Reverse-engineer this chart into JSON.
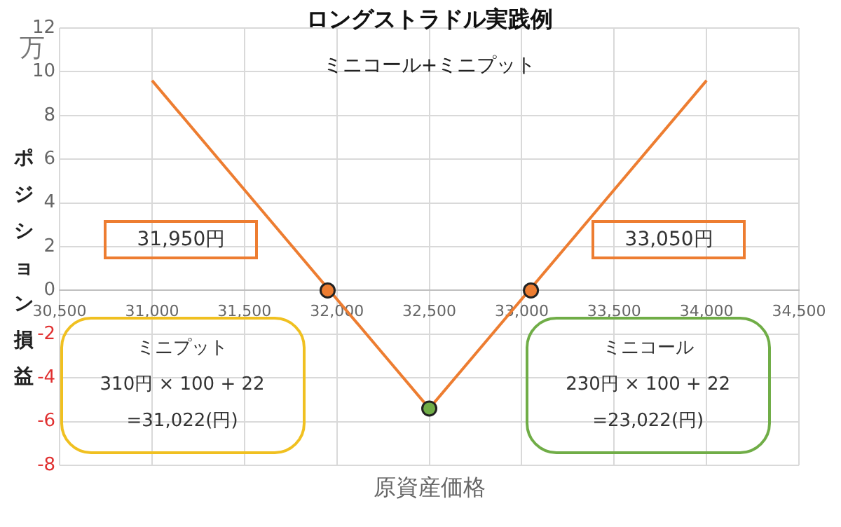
{
  "chart_data": {
    "type": "line",
    "title": "ロングストラドル実践例",
    "subtitle": "ミニコール+ミニプット",
    "xlabel": "原資産価格",
    "ylabel": "ポジション損益",
    "xlim": [
      30500,
      34500
    ],
    "xticks": [
      {
        "value": 30500,
        "label": "30,500"
      },
      {
        "value": 31000,
        "label": "31,000"
      },
      {
        "value": 31500,
        "label": "31,500"
      },
      {
        "value": 32000,
        "label": "32,000"
      },
      {
        "value": 32500,
        "label": "32,500"
      },
      {
        "value": 33000,
        "label": "33,000"
      },
      {
        "value": 33500,
        "label": "33,500"
      },
      {
        "value": 34000,
        "label": "34,000"
      },
      {
        "value": 34500,
        "label": "34,500"
      }
    ],
    "ylim": [
      -8,
      12
    ],
    "yticks": [
      -8,
      -6,
      -4,
      -2,
      0,
      2,
      4,
      6,
      8,
      10,
      12
    ],
    "grid": true,
    "legend": false,
    "series": [
      {
        "type": "line",
        "color": "#ed7d31",
        "x": [
          31000,
          32500,
          34000
        ],
        "values": [
          9.6,
          -5.4,
          9.6
        ],
        "marker": "none"
      },
      {
        "type": "scatter",
        "color": "#ed7d31",
        "x": [
          31950,
          33050
        ],
        "values": [
          0,
          0
        ],
        "marker": "circle"
      },
      {
        "type": "scatter",
        "color": "#70ad47",
        "x": [
          32500
        ],
        "values": [
          -5.4
        ],
        "marker": "circle"
      }
    ],
    "annotations": [
      "万",
      "31,950円",
      "33,050円",
      "ミニプット\n310円 × 100 + 22\n=31,022(円)",
      "ミニコール\n230円 × 100 + 22\n=23,022(円)"
    ]
  }
}
